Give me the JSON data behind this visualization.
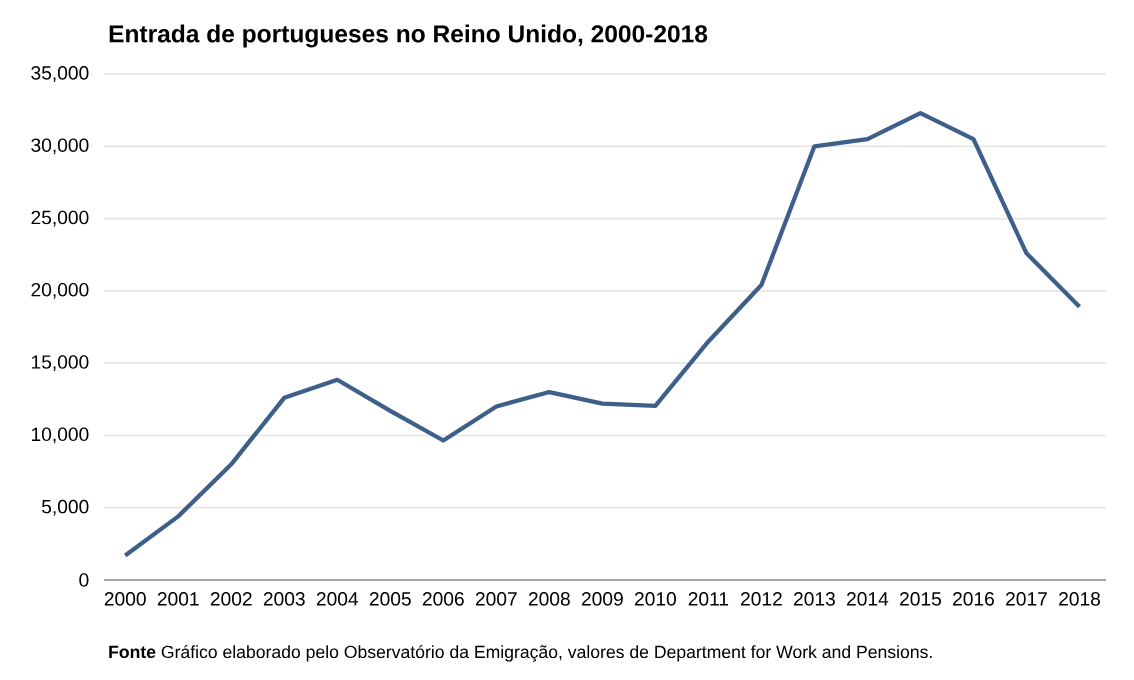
{
  "chart_data": {
    "type": "line",
    "title": "Entrada de portugueses no Reino Unido, 2000-2018",
    "categories": [
      "2000",
      "2001",
      "2002",
      "2003",
      "2004",
      "2005",
      "2006",
      "2007",
      "2008",
      "2009",
      "2010",
      "2011",
      "2012",
      "2013",
      "2014",
      "2015",
      "2016",
      "2017",
      "2018"
    ],
    "series": [
      {
        "color": "#3e5f8a",
        "values": [
          1700,
          4400,
          8000,
          12600,
          13850,
          11700,
          9650,
          12000,
          13000,
          12200,
          12050,
          16500,
          20400,
          30000,
          30500,
          32300,
          30500,
          22600,
          18900
        ]
      }
    ],
    "ylim": [
      0,
      35000
    ],
    "yticks": [
      {
        "value": 0,
        "label": "0"
      },
      {
        "value": 5000,
        "label": "5,000"
      },
      {
        "value": 10000,
        "label": "10,000"
      },
      {
        "value": 15000,
        "label": "15,000"
      },
      {
        "value": 20000,
        "label": "20,000"
      },
      {
        "value": 25000,
        "label": "25,000"
      },
      {
        "value": 30000,
        "label": "30,000"
      },
      {
        "value": 35000,
        "label": "35,000"
      }
    ],
    "grid": "y",
    "marker": "none",
    "line_style": "solid",
    "annotations": [
      "**Fonte** Gráfico elaborado pelo Observatório da Emigração, valores de Department for Work and Pensions."
    ]
  }
}
